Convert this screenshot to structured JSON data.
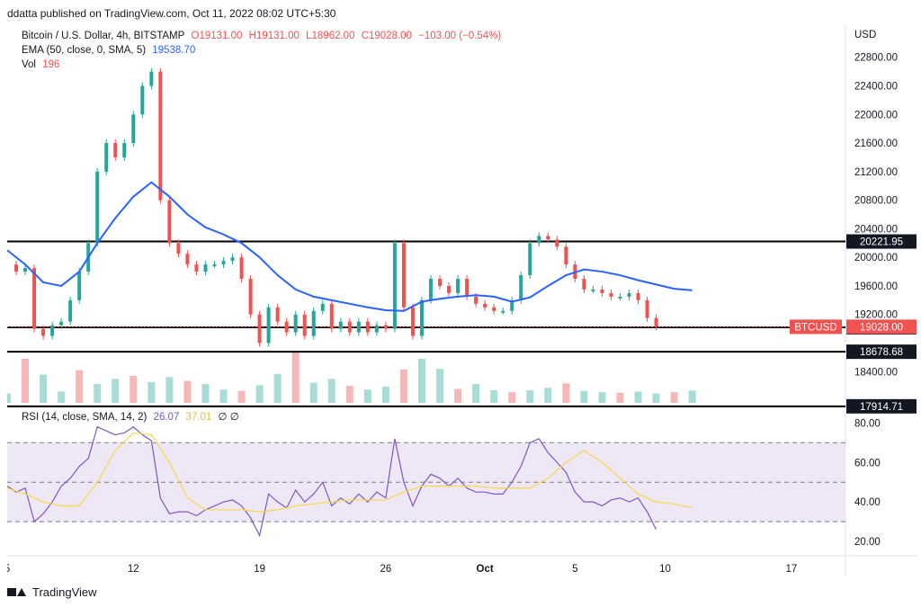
{
  "header": {
    "publish_line": "ddatta published on TradingView.com, Oct 11, 2022 08:02 UTC+5:30"
  },
  "legend": {
    "symbol": "Bitcoin / U.S. Dollar, 4h, BITSTAMP",
    "open": "O19131.00",
    "high": "H19131.00",
    "low": "L18962.00",
    "close": "C19028.00",
    "change": "−103.00 (−0.54%)",
    "ema_label": "EMA (50, close, 0, SMA, 5)",
    "ema_value": "19538.70",
    "vol_label": "Vol",
    "vol_value": "196",
    "rsi_label": "RSI (14, close, SMA, 14, 2)",
    "rsi_value": "26.07",
    "rsi_ma_value": "37.01",
    "rsi_extra": "∅ ∅"
  },
  "colors": {
    "up": "#26a69a",
    "down": "#ef5350",
    "ema": "#2962ff",
    "rsi": "#7e57c2",
    "rsi_ma": "#f7d84a",
    "rsi_band": "#ede7f6",
    "level": "#000000"
  },
  "footer": {
    "brand": "TradingView"
  },
  "chart_data": {
    "type": "line",
    "currency": "USD",
    "price_axis": {
      "ticks": [
        22800,
        22400,
        22000,
        21600,
        21200,
        20800,
        20400,
        20000,
        19600,
        19200,
        18400
      ],
      "ylim": [
        17900,
        23250
      ]
    },
    "x_axis": {
      "ticks": [
        {
          "label": "5",
          "day": 5
        },
        {
          "label": "12",
          "day": 12
        },
        {
          "label": "19",
          "day": 19
        },
        {
          "label": "26",
          "day": 26
        },
        {
          "label": "Oct",
          "day": 31.5
        },
        {
          "label": "5",
          "day": 36.5
        },
        {
          "label": "10",
          "day": 41.5
        },
        {
          "label": "17",
          "day": 48.5
        }
      ],
      "xlim": [
        5,
        51.5
      ]
    },
    "horizontal_levels": [
      {
        "price": 20221.95,
        "label": "20221.95"
      },
      {
        "price": 19020.22,
        "label": "19020.22"
      },
      {
        "price": 18678.68,
        "label": "18678.68"
      },
      {
        "price": 17914.71,
        "label": "17914.71"
      }
    ],
    "last_price": {
      "name": "BTCUSD",
      "price": 19028.0,
      "label": "19028.00"
    },
    "price_series": {
      "name": "BTCUSD",
      "days": [
        5,
        5.5,
        6,
        6.5,
        7,
        7.5,
        8,
        8.5,
        9,
        9.5,
        10,
        10.5,
        11,
        11.5,
        12,
        12.5,
        13,
        13.5,
        14,
        14.5,
        15,
        15.5,
        16,
        16.5,
        17,
        17.5,
        18,
        18.5,
        19,
        19.5,
        20,
        20.5,
        21,
        21.5,
        22,
        22.5,
        23,
        23.5,
        24,
        24.5,
        25,
        25.5,
        26,
        26.5,
        27,
        27.5,
        28,
        28.5,
        29,
        29.5,
        30,
        30.5,
        31,
        31.5,
        32,
        32.5,
        33,
        33.5,
        34,
        34.5,
        35,
        35.5,
        36,
        36.5,
        37,
        37.5,
        38,
        38.5,
        39,
        39.5,
        40,
        40.5,
        41,
        41.5,
        42,
        42.5,
        43
      ],
      "close": [
        19900,
        19800,
        19850,
        19000,
        18900,
        19050,
        19100,
        19400,
        19800,
        20200,
        21200,
        21600,
        21400,
        21600,
        22000,
        22400,
        22600,
        20800,
        20200,
        20050,
        19900,
        19800,
        19900,
        19900,
        19950,
        20000,
        19700,
        19200,
        18800,
        19300,
        19100,
        18950,
        19200,
        18900,
        19250,
        19350,
        19000,
        19100,
        18950,
        19100,
        18950,
        19050,
        19000,
        20200,
        19300,
        18900,
        19400,
        19700,
        19600,
        19500,
        19700,
        19450,
        19350,
        19300,
        19250,
        19250,
        19400,
        19750,
        20200,
        20300,
        20250,
        20150,
        19900,
        19700,
        19550,
        19550,
        19500,
        19450,
        19450,
        19500,
        19400,
        19150,
        19028,
        null,
        null,
        null,
        null
      ]
    },
    "ema_series": {
      "name": "EMA",
      "days": [
        5,
        6,
        7,
        8,
        9,
        10,
        11,
        12,
        13,
        14,
        15,
        16,
        17,
        18,
        19,
        20,
        21,
        22,
        23,
        24,
        25,
        26,
        27,
        28,
        29,
        30,
        31,
        32,
        33,
        34,
        35,
        36,
        37,
        38,
        39,
        40,
        41,
        42,
        43
      ],
      "values": [
        20100,
        19900,
        19650,
        19600,
        19800,
        20200,
        20550,
        20850,
        21050,
        20850,
        20600,
        20420,
        20320,
        20200,
        20000,
        19750,
        19550,
        19450,
        19400,
        19350,
        19300,
        19260,
        19250,
        19380,
        19420,
        19450,
        19470,
        19450,
        19380,
        19440,
        19600,
        19750,
        19830,
        19800,
        19750,
        19680,
        19620,
        19560,
        19538.7
      ]
    },
    "volume": {
      "name": "Vol",
      "days": [
        5,
        6,
        7,
        8,
        9,
        10,
        11,
        12,
        13,
        14,
        15,
        16,
        17,
        18,
        19,
        20,
        21,
        22,
        23,
        24,
        25,
        26,
        27,
        28,
        29,
        30,
        31,
        32,
        33,
        34,
        35,
        36,
        37,
        38,
        39,
        40,
        41,
        42,
        43
      ],
      "values": [
        150,
        700,
        450,
        180,
        520,
        300,
        380,
        430,
        330,
        410,
        350,
        300,
        210,
        190,
        280,
        460,
        800,
        320,
        380,
        270,
        210,
        260,
        530,
        700,
        540,
        220,
        300,
        200,
        170,
        200,
        240,
        310,
        190,
        170,
        160,
        180,
        150,
        170,
        196
      ]
    },
    "rsi_axis": {
      "ticks": [
        80,
        60,
        40,
        20
      ],
      "ylim": [
        15,
        87
      ],
      "bands": [
        70,
        50,
        30
      ]
    },
    "rsi_series": {
      "name": "RSI",
      "days": [
        5,
        5.5,
        6,
        6.5,
        7,
        7.5,
        8,
        8.5,
        9,
        9.5,
        10,
        10.5,
        11,
        11.5,
        12,
        12.5,
        13,
        13.5,
        14,
        14.5,
        15,
        15.5,
        16,
        16.5,
        17,
        17.5,
        18,
        18.5,
        19,
        19.5,
        20,
        20.5,
        21,
        21.5,
        22,
        22.5,
        23,
        23.5,
        24,
        24.5,
        25,
        25.5,
        26,
        26.5,
        27,
        27.5,
        28,
        28.5,
        29,
        29.5,
        30,
        30.5,
        31,
        31.5,
        32,
        32.5,
        33,
        33.5,
        34,
        34.5,
        35,
        35.5,
        36,
        36.5,
        37,
        37.5,
        38,
        38.5,
        39,
        39.5,
        40,
        40.5,
        41,
        41.5,
        42,
        42.5,
        43
      ],
      "values": [
        48,
        45,
        47,
        30,
        34,
        40,
        48,
        52,
        58,
        62,
        78,
        76,
        74,
        75,
        78,
        74,
        71,
        42,
        34,
        35,
        35,
        33,
        36,
        38,
        40,
        41,
        38,
        32,
        23,
        44,
        40,
        37,
        46,
        40,
        44,
        50,
        38,
        42,
        39,
        44,
        40,
        45,
        42,
        72,
        50,
        38,
        48,
        54,
        52,
        48,
        52,
        47,
        45,
        45,
        44,
        44,
        50,
        58,
        70,
        72,
        65,
        60,
        55,
        45,
        40,
        40,
        38,
        41,
        42,
        40,
        42,
        35,
        26.07,
        null,
        null,
        null,
        null
      ]
    },
    "rsi_ma_series": {
      "name": "RSI MA",
      "days": [
        5,
        6,
        7,
        8,
        9,
        10,
        11,
        12,
        13,
        14,
        15,
        16,
        17,
        18,
        19,
        20,
        21,
        22,
        23,
        24,
        25,
        26,
        27,
        28,
        29,
        30,
        31,
        32,
        33,
        34,
        35,
        36,
        37,
        38,
        39,
        40,
        41,
        42,
        43
      ],
      "values": [
        47,
        44,
        40,
        38,
        38,
        50,
        66,
        75,
        74,
        60,
        42,
        36,
        36,
        36,
        35,
        36,
        38,
        39,
        40,
        41,
        41,
        41,
        45,
        48,
        48,
        48,
        48,
        47,
        47,
        47,
        52,
        60,
        66,
        60,
        52,
        44,
        40,
        39,
        37.01
      ]
    }
  }
}
